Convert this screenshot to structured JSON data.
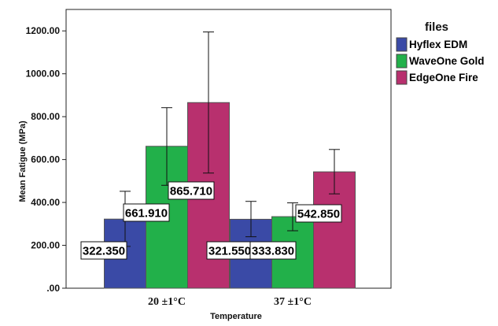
{
  "chart_data": {
    "type": "bar",
    "categories": [
      "20 ±1°C",
      "37 ±1°C"
    ],
    "series": [
      {
        "name": "Hyflex EDM",
        "values": [
          322.35,
          321.55
        ],
        "err_low": [
          195,
          240
        ],
        "err_high": [
          452,
          405
        ],
        "color": "#3a4aa6",
        "label_text": [
          "322.350",
          "321.550"
        ]
      },
      {
        "name": "WaveOne Gold",
        "values": [
          661.91,
          333.83
        ],
        "err_low": [
          480,
          268
        ],
        "err_high": [
          842,
          398
        ],
        "color": "#22b04a",
        "label_text": [
          "661.910",
          "333.830"
        ]
      },
      {
        "name": "EdgeOne Fire",
        "values": [
          865.71,
          542.85
        ],
        "err_low": [
          537,
          440
        ],
        "err_high": [
          1195,
          647
        ],
        "color": "#b8306e",
        "label_text": [
          "865.710",
          "542.850"
        ]
      }
    ],
    "ylim": [
      0,
      1300
    ],
    "yticks": [
      0,
      200,
      400,
      600,
      800,
      1000,
      1200
    ],
    "ytick_labels": [
      ".00",
      "200.00",
      "400.00",
      "600.00",
      "800.00",
      "1000.00",
      "1200.00"
    ],
    "xlabel": "Temperature",
    "ylabel": "Mean Fatigue (MPa)",
    "legend_title": "files",
    "legend_position": "top-right",
    "grid": false
  }
}
